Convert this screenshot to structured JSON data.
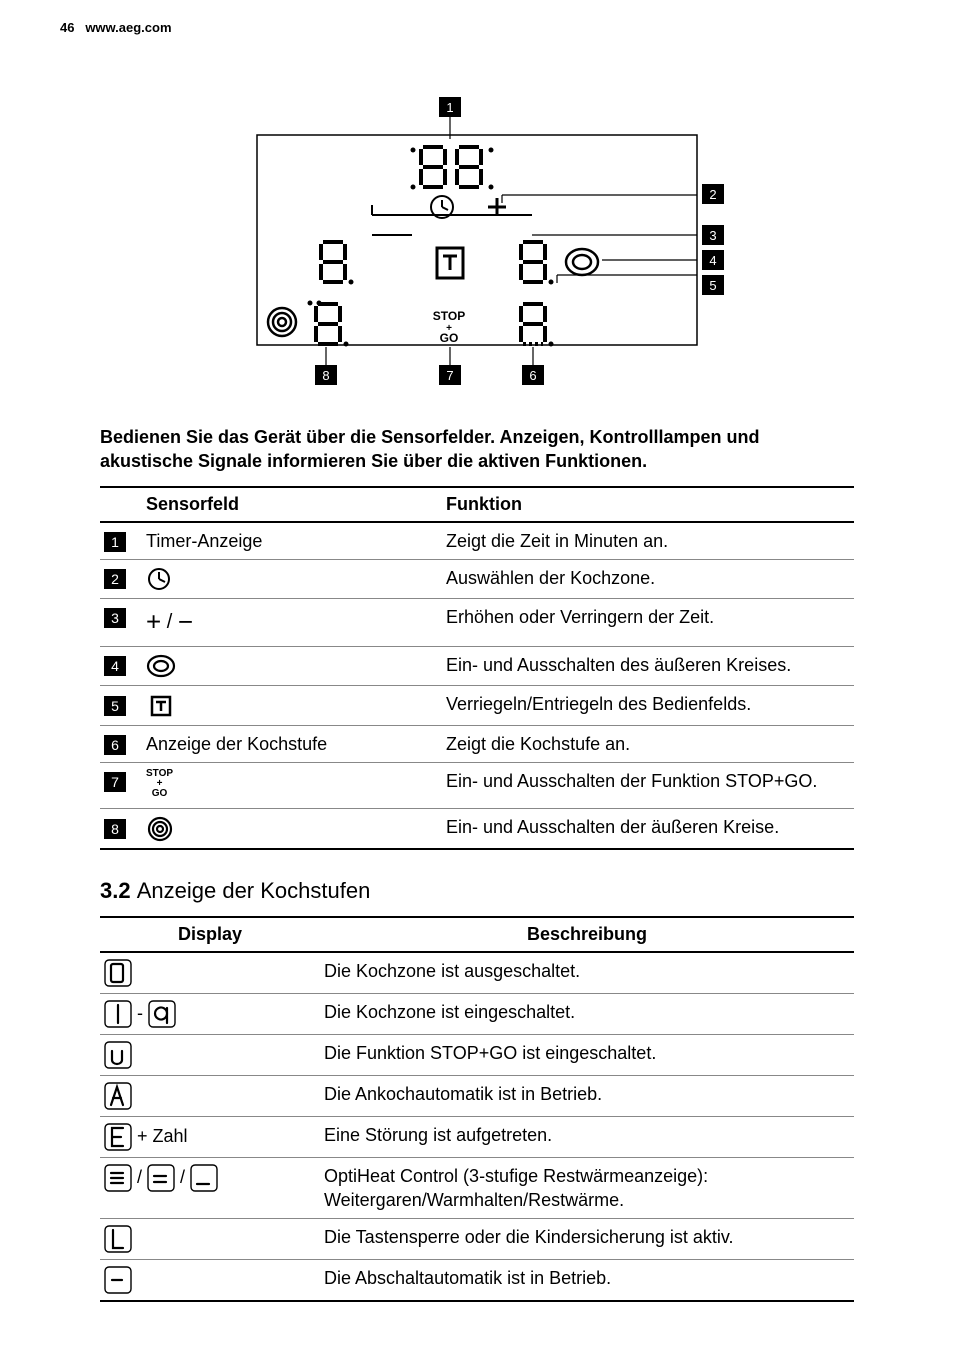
{
  "header": {
    "page_num": "46",
    "url": "www.aeg.com"
  },
  "diagram": {
    "labels": [
      "1",
      "2",
      "3",
      "4",
      "5",
      "6",
      "7",
      "8"
    ],
    "badge_bg": "#000000",
    "badge_fg": "#ffffff",
    "stroke": "#000000"
  },
  "intro": "Bedienen Sie das Gerät über die Sensorfelder. Anzeigen, Kontrolllampen und akustische Signale informieren Sie über die aktiven Funktionen.",
  "table1": {
    "headers": [
      "",
      "Sensorfeld",
      "Funktion"
    ],
    "rows": [
      {
        "num": "1",
        "icon": "text",
        "label": "Timer-Anzeige",
        "func": "Zeigt die Zeit in Minuten an."
      },
      {
        "num": "2",
        "icon": "clock",
        "label": "",
        "func": "Auswählen der Kochzone."
      },
      {
        "num": "3",
        "icon": "plusminus",
        "label": "",
        "func": "Erhöhen oder Verringern der Zeit."
      },
      {
        "num": "4",
        "icon": "ring",
        "label": "",
        "func": "Ein- und Ausschalten des äußeren Kreises."
      },
      {
        "num": "5",
        "icon": "lock",
        "label": "",
        "func": "Verriegeln/Entriegeln des Bedienfelds."
      },
      {
        "num": "6",
        "icon": "text",
        "label": "Anzeige der Kochstufe",
        "func": "Zeigt die Kochstufe an."
      },
      {
        "num": "7",
        "icon": "stopgo",
        "label": "",
        "func": "Ein- und Ausschalten der Funktion STOP+GO."
      },
      {
        "num": "8",
        "icon": "target",
        "label": "",
        "func": "Ein- und Ausschalten der äußeren Kreise."
      }
    ]
  },
  "section2": {
    "num": "3.2",
    "title": "Anzeige der Kochstufen"
  },
  "table2": {
    "headers": [
      "Display",
      "Beschreibung"
    ],
    "rows": [
      {
        "disp": "seg0",
        "desc": "Die Kochzone ist ausgeschaltet."
      },
      {
        "disp": "seg1-9",
        "desc": "Die Kochzone ist eingeschaltet."
      },
      {
        "disp": "segU",
        "desc": "Die Funktion STOP+GO ist eingeschaltet."
      },
      {
        "disp": "segA",
        "desc": "Die Ankochautomatik ist in Betrieb."
      },
      {
        "disp": "segEzahl",
        "desc": "Eine Störung ist aufgetreten."
      },
      {
        "disp": "heat3",
        "desc": "OptiHeat Control (3-stufige Restwärmeanzeige): Weitergaren/Warmhalten/Restwärme."
      },
      {
        "disp": "segL",
        "desc": "Die Tastensperre oder die Kindersicherung ist aktiv."
      },
      {
        "disp": "segDash",
        "desc": "Die Abschaltautomatik ist in Betrieb."
      }
    ]
  },
  "glyphs": {
    "zahl": " + Zahl",
    "sep": " - ",
    "slash": " / "
  }
}
